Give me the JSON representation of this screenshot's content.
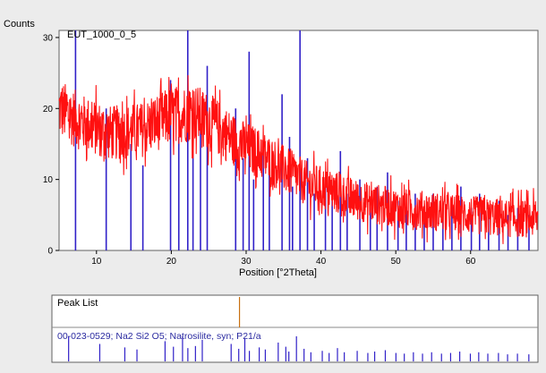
{
  "chart_data": {
    "type": "line",
    "ylabel": "Counts",
    "xlabel": "Position [°2Theta]",
    "sample_name": "EUT_1000_0_5",
    "xlim": [
      5,
      69
    ],
    "ylim": [
      0,
      31
    ],
    "x_ticks": [
      10,
      20,
      30,
      40,
      50,
      60
    ],
    "y_ticks": [
      0,
      10,
      20,
      30
    ],
    "series": [],
    "profile": [
      [
        5,
        20
      ],
      [
        8,
        18
      ],
      [
        12,
        16.5
      ],
      [
        16,
        17
      ],
      [
        20,
        19
      ],
      [
        23,
        19.5
      ],
      [
        26,
        17.5
      ],
      [
        29,
        15
      ],
      [
        32,
        13.5
      ],
      [
        35,
        11.5
      ],
      [
        38,
        9.5
      ],
      [
        41,
        8.5
      ],
      [
        45,
        7
      ],
      [
        50,
        6
      ],
      [
        55,
        5.5
      ],
      [
        60,
        5
      ],
      [
        65,
        4.5
      ],
      [
        69,
        4.5
      ]
    ],
    "noise_amplitude": 4,
    "series_color": "#ff1010",
    "reference_color": "#3020c8",
    "marker_color": "#c87010",
    "reference_lines": [
      [
        7.2,
        31
      ],
      [
        11.3,
        20
      ],
      [
        14.6,
        15
      ],
      [
        16.2,
        12
      ],
      [
        19.9,
        24
      ],
      [
        21.0,
        16
      ],
      [
        22.2,
        31
      ],
      [
        22.9,
        14
      ],
      [
        23.9,
        17
      ],
      [
        24.8,
        26
      ],
      [
        28.6,
        20
      ],
      [
        29.6,
        13
      ],
      [
        30.4,
        28
      ],
      [
        31.0,
        10
      ],
      [
        32.3,
        15
      ],
      [
        33.1,
        12
      ],
      [
        34.8,
        22
      ],
      [
        35.8,
        16
      ],
      [
        36.2,
        9
      ],
      [
        37.2,
        31
      ],
      [
        38.2,
        13
      ],
      [
        39.1,
        8
      ],
      [
        40.6,
        10
      ],
      [
        41.5,
        7
      ],
      [
        42.6,
        14
      ],
      [
        43.5,
        8
      ],
      [
        45.2,
        10
      ],
      [
        46.6,
        7
      ],
      [
        47.5,
        9
      ],
      [
        48.9,
        11
      ],
      [
        50.3,
        7
      ],
      [
        51.4,
        6
      ],
      [
        52.6,
        8
      ],
      [
        53.8,
        6
      ],
      [
        55.0,
        8
      ],
      [
        56.3,
        6
      ],
      [
        57.5,
        7
      ],
      [
        58.7,
        9
      ],
      [
        60.1,
        6
      ],
      [
        61.2,
        8
      ],
      [
        62.4,
        6
      ],
      [
        63.8,
        7
      ],
      [
        65.0,
        5
      ],
      [
        66.3,
        6
      ],
      [
        67.8,
        5
      ]
    ],
    "peak_list_title": "Peak List",
    "peak_list_marker_x": 29.7,
    "reference_entry": "00-023-0529; Na2 Si2 O5; Natrosilite, syn; P21/a"
  }
}
